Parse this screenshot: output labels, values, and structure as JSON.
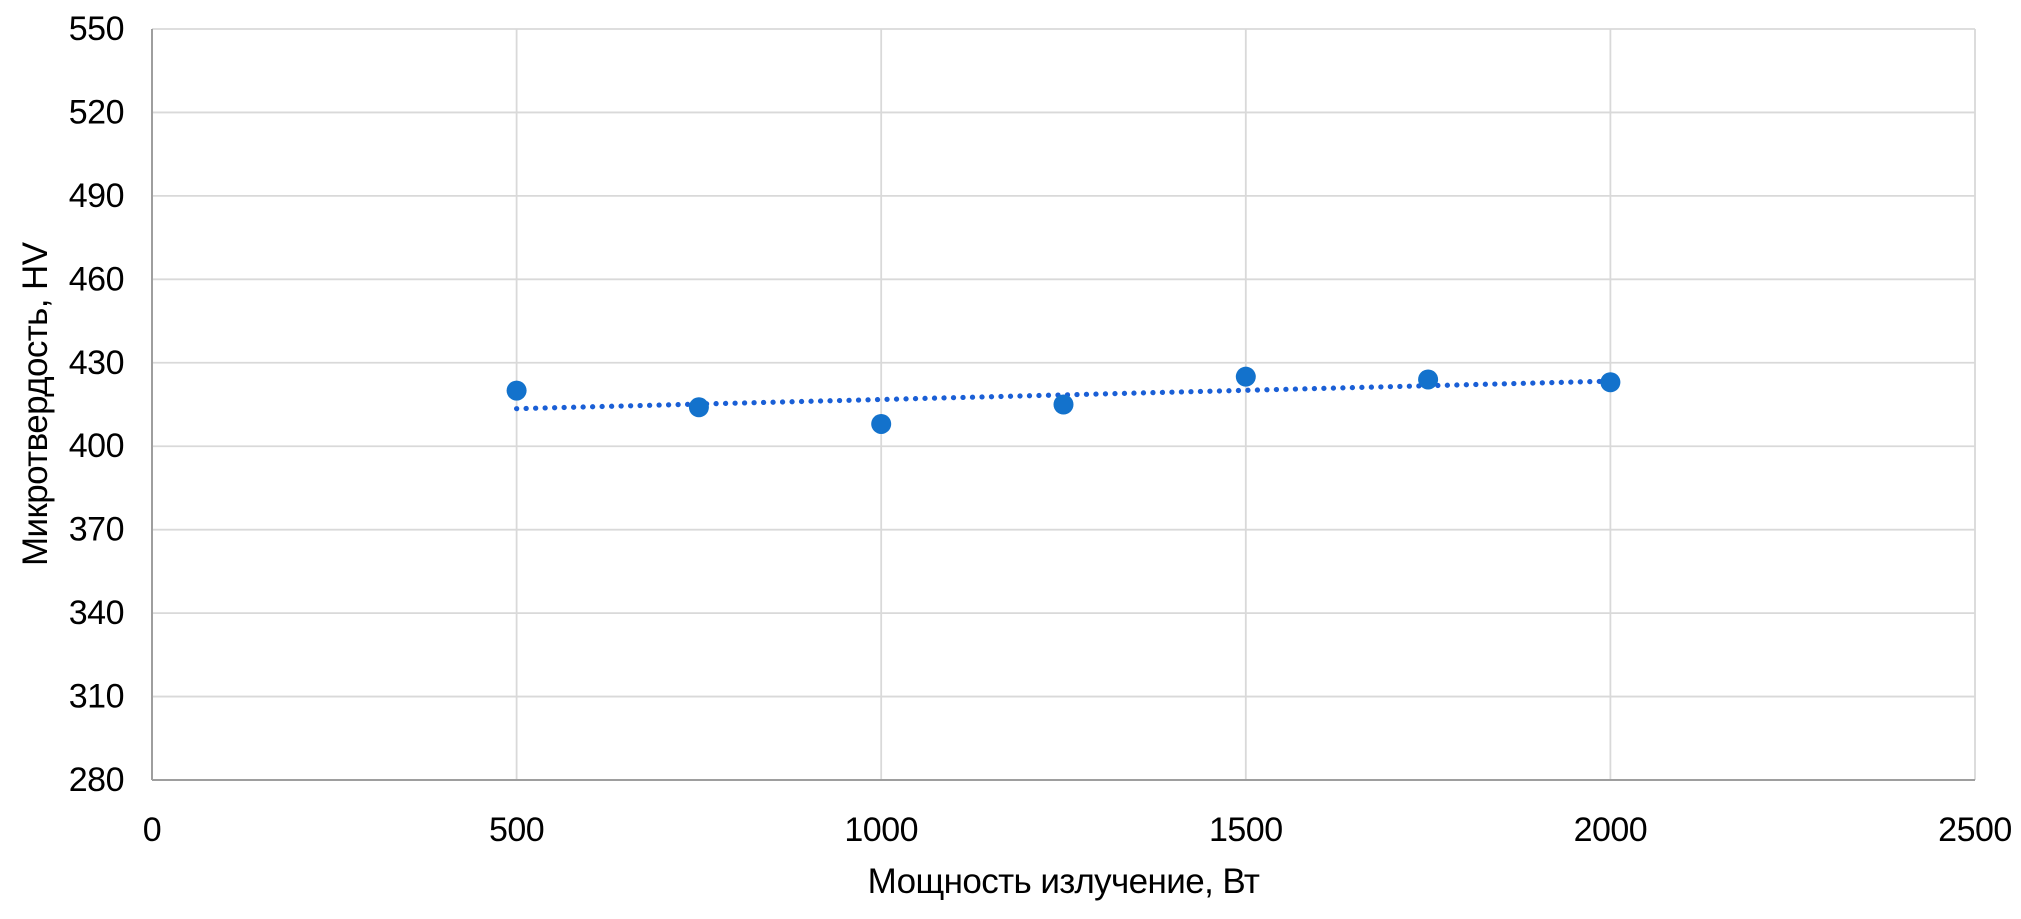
{
  "chart_data": {
    "type": "scatter",
    "title": "",
    "xlabel": "Мощность излучение, Вт",
    "ylabel": "Микротвердость, HV",
    "xlim": [
      0,
      2500
    ],
    "ylim": [
      280,
      550
    ],
    "x_ticks": [
      0,
      500,
      1000,
      1500,
      2000,
      2500
    ],
    "y_ticks": [
      280,
      310,
      340,
      370,
      400,
      430,
      460,
      490,
      520,
      550
    ],
    "grid": {
      "horizontal": true,
      "vertical": true
    },
    "legend": "none",
    "series": [
      {
        "x": [
          500,
          750,
          1000,
          1250,
          1500,
          1750,
          2000
        ],
        "y": [
          420,
          414,
          408,
          415,
          425,
          424,
          423
        ]
      }
    ],
    "trendline": {
      "type": "linear",
      "style": "dotted",
      "x": [
        500,
        2000
      ],
      "y": [
        413.5,
        423.4
      ]
    },
    "colors": {
      "marker": "#1372CC",
      "trendline": "#1A5FD6",
      "gridline": "#D9D9D9",
      "axis_line": "#9E9E9E",
      "text": "#000000"
    }
  }
}
